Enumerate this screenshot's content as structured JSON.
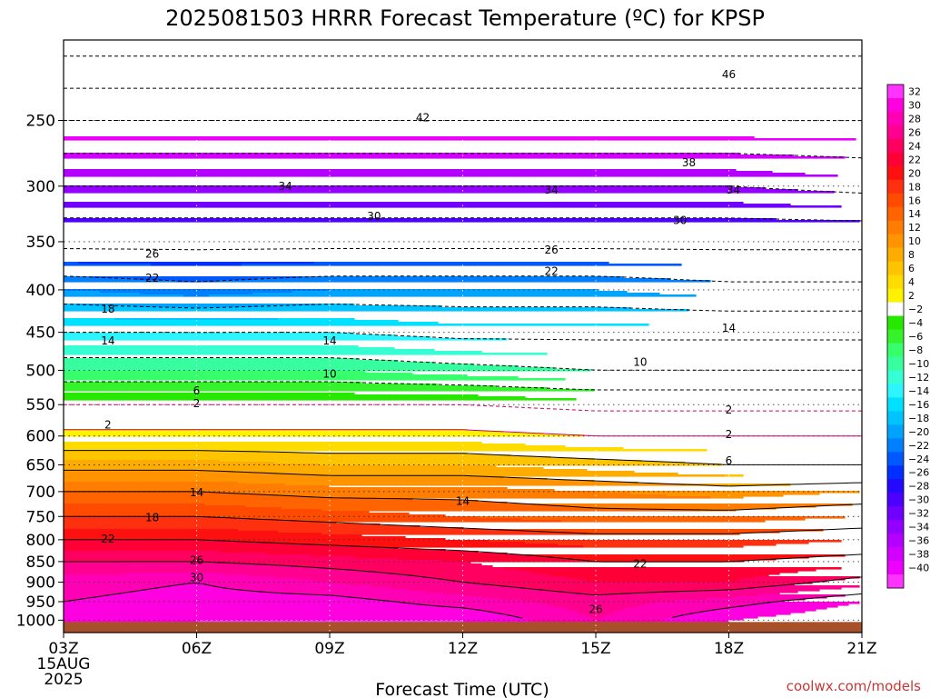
{
  "chart_data": {
    "type": "contour",
    "title": "2025081503 HRRR Forecast Temperature (ºC) for KPSP",
    "xlabel": "Forecast Time (UTC)",
    "credit": "coolwx.com/models",
    "x": {
      "range": [
        3,
        21
      ],
      "ticks": [
        {
          "value": 3,
          "label": "03Z",
          "sublabels": [
            "15AUG",
            "2025"
          ]
        },
        {
          "value": 6,
          "label": "06Z"
        },
        {
          "value": 9,
          "label": "09Z"
        },
        {
          "value": 12,
          "label": "12Z"
        },
        {
          "value": 15,
          "label": "15Z"
        },
        {
          "value": 18,
          "label": "18Z"
        },
        {
          "value": 21,
          "label": "21Z"
        }
      ]
    },
    "y": {
      "label": "",
      "scale": "log",
      "reversed": true,
      "range": [
        1035,
        200
      ],
      "ticks": [
        1000,
        950,
        900,
        850,
        800,
        750,
        700,
        650,
        600,
        550,
        500,
        450,
        400,
        350,
        300,
        250
      ],
      "ground_level": 1000
    },
    "grid": true,
    "levels": [
      1000,
      950,
      900,
      850,
      800,
      750,
      700,
      650,
      600,
      550,
      500,
      450,
      400,
      350,
      300,
      250,
      200
    ],
    "times": [
      3,
      6,
      9,
      12,
      15,
      18,
      21
    ],
    "temperature_c": [
      [
        31,
        32,
        32,
        32,
        28,
        32,
        34
      ],
      [
        30,
        31,
        31,
        29,
        27,
        29,
        32
      ],
      [
        29,
        30,
        28,
        26,
        24,
        24,
        27
      ],
      [
        26,
        26,
        25,
        24,
        22,
        22,
        23
      ],
      [
        22,
        22,
        21,
        20,
        19,
        19,
        20
      ],
      [
        18,
        18,
        17,
        16,
        15,
        15,
        16
      ],
      [
        14,
        14,
        13,
        13,
        12,
        11,
        12
      ],
      [
        9,
        9,
        8,
        8,
        7,
        6,
        6
      ],
      [
        3,
        3,
        3,
        3,
        2,
        2,
        2
      ],
      [
        -2,
        -2,
        -2,
        -2,
        -3,
        -3,
        -3
      ],
      [
        -8,
        -8,
        -8,
        -9,
        -10,
        -10,
        -10
      ],
      [
        -14,
        -14,
        -14,
        -15,
        -15,
        -15,
        -15
      ],
      [
        -20,
        -21,
        -20,
        -20,
        -20,
        -21,
        -21
      ],
      [
        -27,
        -27,
        -27,
        -27,
        -27,
        -27,
        -27
      ],
      [
        -34,
        -34,
        -34,
        -34,
        -34,
        -34,
        -35
      ],
      [
        -42,
        -42,
        -42,
        -42,
        -42,
        -42,
        -42
      ],
      [
        -52,
        -52,
        -52,
        -52,
        -52,
        -52,
        -52
      ]
    ],
    "contour_labels": [
      {
        "text": "46",
        "t": 18.0,
        "p": 220
      },
      {
        "text": "42",
        "t": 11.1,
        "p": 248
      },
      {
        "text": "38",
        "t": 17.1,
        "p": 281
      },
      {
        "text": "34",
        "t": 8.0,
        "p": 300
      },
      {
        "text": "34",
        "t": 14.0,
        "p": 303
      },
      {
        "text": "34",
        "t": 18.1,
        "p": 303
      },
      {
        "text": "30",
        "t": 10.0,
        "p": 326
      },
      {
        "text": "30",
        "t": 16.9,
        "p": 330
      },
      {
        "text": "26",
        "t": 5.0,
        "p": 362
      },
      {
        "text": "26",
        "t": 14.0,
        "p": 358
      },
      {
        "text": "22",
        "t": 5.0,
        "p": 387
      },
      {
        "text": "22",
        "t": 14.0,
        "p": 380
      },
      {
        "text": "18",
        "t": 4.0,
        "p": 422
      },
      {
        "text": "14",
        "t": 4.0,
        "p": 461
      },
      {
        "text": "14",
        "t": 9.0,
        "p": 461
      },
      {
        "text": "14",
        "t": 18.0,
        "p": 445
      },
      {
        "text": "10",
        "t": 9.0,
        "p": 505
      },
      {
        "text": "10",
        "t": 16.0,
        "p": 489
      },
      {
        "text": "6",
        "t": 6.0,
        "p": 529
      },
      {
        "text": "2",
        "t": 6.0,
        "p": 548
      },
      {
        "text": "2",
        "t": 4.0,
        "p": 582
      },
      {
        "text": "2",
        "t": 18.0,
        "p": 558
      },
      {
        "text": "2",
        "t": 18.0,
        "p": 597
      },
      {
        "text": "6",
        "t": 18.0,
        "p": 643
      },
      {
        "text": "14",
        "t": 6.0,
        "p": 702
      },
      {
        "text": "14",
        "t": 12.0,
        "p": 719
      },
      {
        "text": "18",
        "t": 5.0,
        "p": 752
      },
      {
        "text": "22",
        "t": 4.0,
        "p": 798
      },
      {
        "text": "26",
        "t": 6.0,
        "p": 847
      },
      {
        "text": "22",
        "t": 16.0,
        "p": 856
      },
      {
        "text": "30",
        "t": 6.0,
        "p": 889
      },
      {
        "text": "26",
        "t": 15.0,
        "p": 971
      }
    ],
    "colorbar": {
      "labels": [
        "32",
        "30",
        "28",
        "26",
        "24",
        "22",
        "20",
        "18",
        "16",
        "14",
        "12",
        "10",
        "8",
        "6",
        "4",
        "2",
        "−2",
        "−4",
        "−6",
        "−8",
        "−10",
        "−12",
        "−14",
        "−16",
        "−18",
        "−20",
        "−22",
        "−24",
        "−26",
        "−28",
        "−30",
        "−32",
        "−34",
        "−36",
        "−38",
        "−40"
      ],
      "colors": [
        "#ff33ff",
        "#ff00e0",
        "#ff00b4",
        "#ff0090",
        "#ff0060",
        "#ff0036",
        "#ff1010",
        "#ff3010",
        "#ff4a00",
        "#ff6400",
        "#ff7d00",
        "#ff9400",
        "#ffac00",
        "#ffc400",
        "#ffdc00",
        "#fff200",
        "#ffffff",
        "#27e800",
        "#35f22a",
        "#37ff6c",
        "#37ffa0",
        "#37ffd4",
        "#2cf5ff",
        "#00e0ff",
        "#00c4ff",
        "#00a4ff",
        "#0080ff",
        "#0058ff",
        "#0030ff",
        "#2408ff",
        "#4c00ff",
        "#7000ff",
        "#9400ff",
        "#b400ff",
        "#d400ff",
        "#ee00ff",
        "#ff33ff"
      ],
      "temp_range": [
        -44,
        34
      ]
    },
    "ground_color": "#a8502a"
  }
}
